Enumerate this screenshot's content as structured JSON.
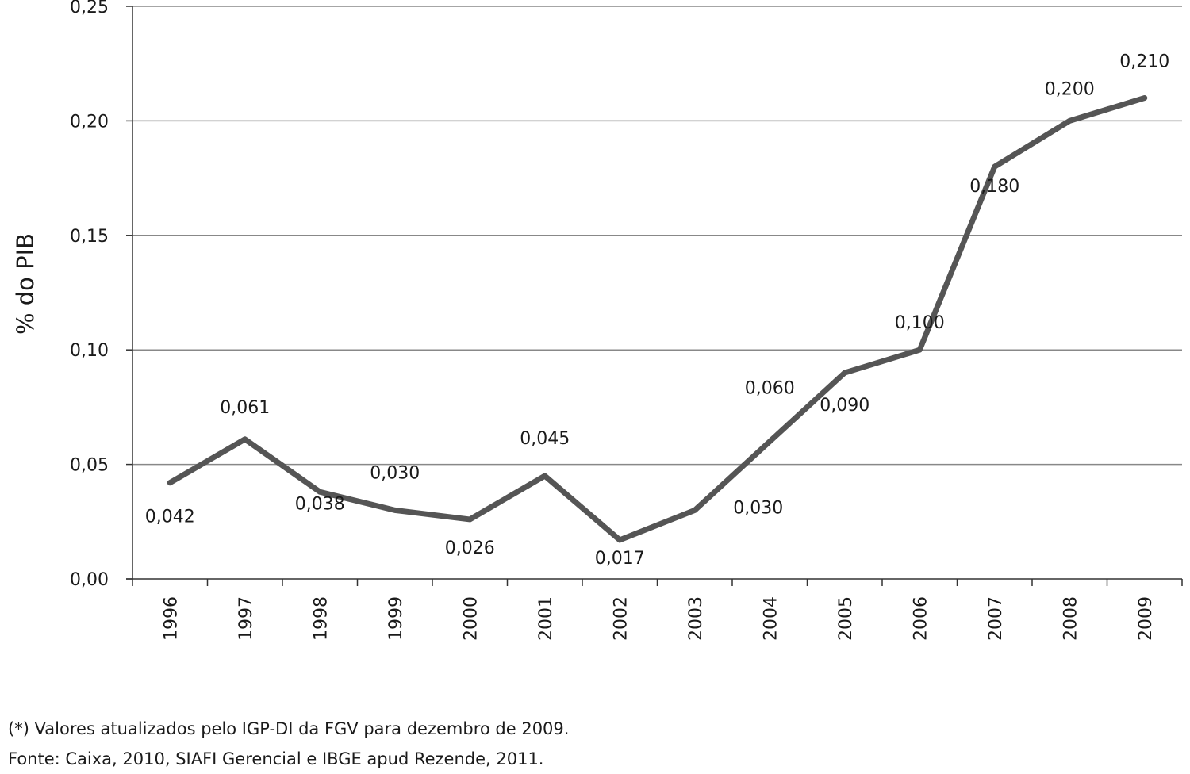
{
  "chart_data": {
    "type": "line",
    "categories": [
      "1996",
      "1997",
      "1998",
      "1999",
      "2000",
      "2001",
      "2002",
      "2003",
      "2004",
      "2005",
      "2006",
      "2007",
      "2008",
      "2009"
    ],
    "series": [
      {
        "values": [
          0.042,
          0.061,
          0.038,
          0.03,
          0.026,
          0.045,
          0.017,
          0.03,
          0.06,
          0.09,
          0.1,
          0.18,
          0.2,
          0.21
        ]
      }
    ],
    "data_labels": [
      "0,042",
      "0,061",
      "0,038",
      "0,030",
      "0,026",
      "0,045",
      "0,017",
      "0,030",
      "0,060",
      "0,090",
      "0,100",
      "0,180",
      "0,200",
      "0,210"
    ],
    "ylabel": "% do PIB",
    "xlabel": "",
    "ylim": [
      0,
      0.25
    ],
    "yticks": [
      0,
      0.05,
      0.1,
      0.15,
      0.2,
      0.25
    ],
    "ytick_labels": [
      "0,00",
      "0,05",
      "0,10",
      "0,15",
      "0,20",
      "0,25"
    ],
    "grid": true,
    "colors": {
      "line": "#555555",
      "grid": "#888888",
      "axis": "#333333"
    }
  },
  "notes": {
    "line1": "(*) Valores atualizados pelo IGP-DI da FGV para dezembro de 2009.",
    "line2": "Fonte: Caixa, 2010, SIAFI Gerencial e IBGE apud Rezende, 2011."
  }
}
